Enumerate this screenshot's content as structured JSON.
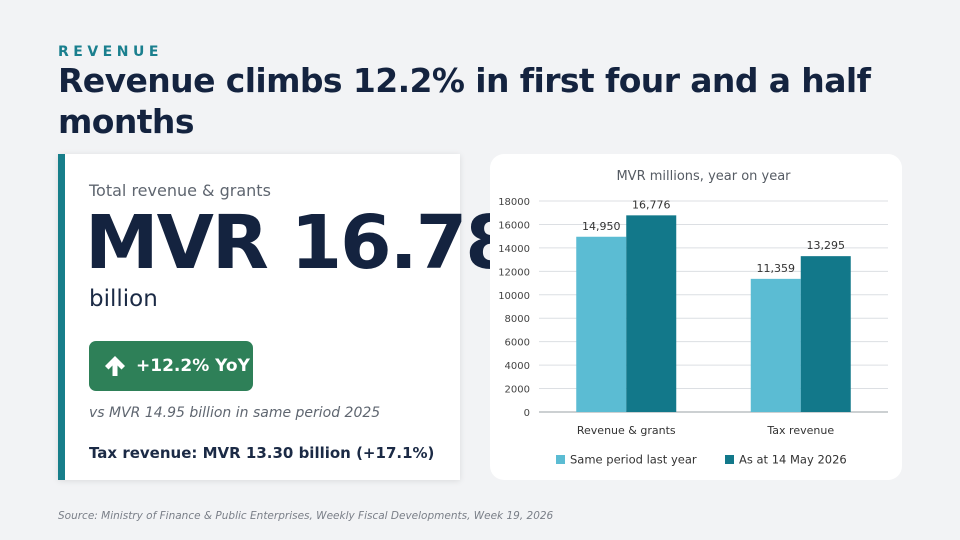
{
  "header": {
    "eyebrow": "REVENUE",
    "headline": "Revenue climbs 12.2% in first four and a half months"
  },
  "kpi": {
    "label": "Total revenue & grants",
    "value": "MVR 16.78",
    "unit": "billion",
    "badge": "+12.2% YoY",
    "badge_icon": "arrow-up-icon",
    "compare": "vs MVR 14.95 billion in same period 2025",
    "tax": "Tax revenue: MVR 13.30 billion  (+17.1%)"
  },
  "colors": {
    "accent": "#177e8a",
    "badge": "#2e8058",
    "series_last_year": "#5bbcd3",
    "series_current": "#12788a"
  },
  "chart_data": {
    "type": "bar",
    "title": "MVR millions, year on year",
    "categories": [
      "Revenue & grants",
      "Tax revenue"
    ],
    "series": [
      {
        "name": "Same period last year",
        "values": [
          14950,
          11359
        ],
        "labels": [
          "14,950",
          "11,359"
        ]
      },
      {
        "name": "As at 14 May 2026",
        "values": [
          16776,
          13295
        ],
        "labels": [
          "16,776",
          "13,295"
        ]
      }
    ],
    "ylim": [
      0,
      18000
    ],
    "yticks": [
      0,
      2000,
      4000,
      6000,
      8000,
      10000,
      12000,
      14000,
      16000,
      18000
    ],
    "grid": true,
    "legend": "bottom"
  },
  "footer": {
    "source": "Source: Ministry of Finance & Public Enterprises, Weekly Fiscal Developments, Week 19, 2026"
  }
}
